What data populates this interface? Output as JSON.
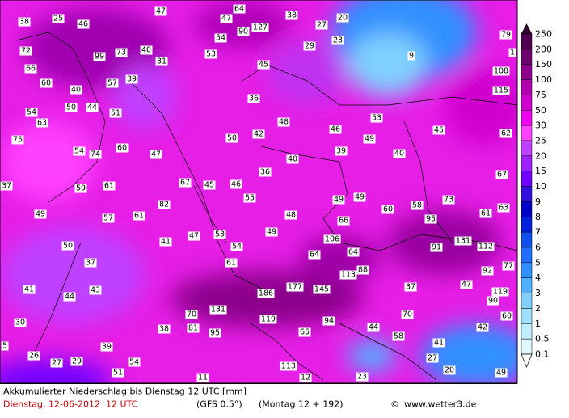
{
  "map": {
    "labels": [
      "38",
      "25",
      "46",
      "47",
      "64",
      "47",
      "90",
      "127",
      "38",
      "27",
      "20",
      "29",
      "23",
      "54",
      "53",
      "72",
      "99",
      "73",
      "40",
      "31",
      "45",
      "9",
      "79",
      "1",
      "66",
      "60",
      "57",
      "39",
      "108",
      "40",
      "115",
      "50",
      "44",
      "51",
      "36",
      "54",
      "63",
      "48",
      "53",
      "46",
      "45",
      "62",
      "75",
      "42",
      "50",
      "49",
      "54",
      "74",
      "60",
      "47",
      "39",
      "40",
      "37",
      "36",
      "40",
      "67",
      "59",
      "61",
      "67",
      "45",
      "46",
      "55",
      "49",
      "49",
      "73",
      "49",
      "82",
      "60",
      "58",
      "61",
      "63",
      "57",
      "61",
      "48",
      "66",
      "95",
      "49",
      "47",
      "53",
      "41",
      "106",
      "91",
      "131",
      "112",
      "50",
      "54",
      "64",
      "64",
      "77",
      "37",
      "61",
      "88",
      "113",
      "92",
      "41",
      "43",
      "44",
      "186",
      "177",
      "145",
      "37",
      "47",
      "119",
      "90",
      "131",
      "70",
      "119",
      "70",
      "30",
      "38",
      "81",
      "95",
      "94",
      "65",
      "44",
      "58",
      "42",
      "60",
      "5",
      "39",
      "41",
      "26",
      "27",
      "29",
      "54",
      "113",
      "27",
      "51",
      "11",
      "12",
      "23",
      "20",
      "49"
    ]
  },
  "colorbar": {
    "ticks": [
      "250",
      "200",
      "150",
      "100",
      "75",
      "50",
      "30",
      "25",
      "20",
      "15",
      "10",
      "9",
      "8",
      "7",
      "6",
      "5",
      "4",
      "3",
      "2",
      "1",
      "0.5",
      "0.1"
    ],
    "colors": [
      "#500050",
      "#6e006e",
      "#8c008c",
      "#b000b0",
      "#d000d0",
      "#f000f0",
      "#ff40ff",
      "#c040ff",
      "#a020ff",
      "#7000ff",
      "#3010e0",
      "#0000c8",
      "#0020e0",
      "#1050f0",
      "#2070ff",
      "#3090ff",
      "#50b0ff",
      "#80d0ff",
      "#a0e0ff",
      "#c0f0ff",
      "#e0f8ff"
    ]
  },
  "footer": {
    "title": "Akkumulierter Niederschlag bis Dienstag 12 UTC [mm]",
    "date": "Dienstag, 12-06-2012  12 UTC",
    "model": "(GFS 0.5°)",
    "run": "(Montag 12 + 192)",
    "copyright": "©",
    "site": "www.wetter3.de"
  }
}
